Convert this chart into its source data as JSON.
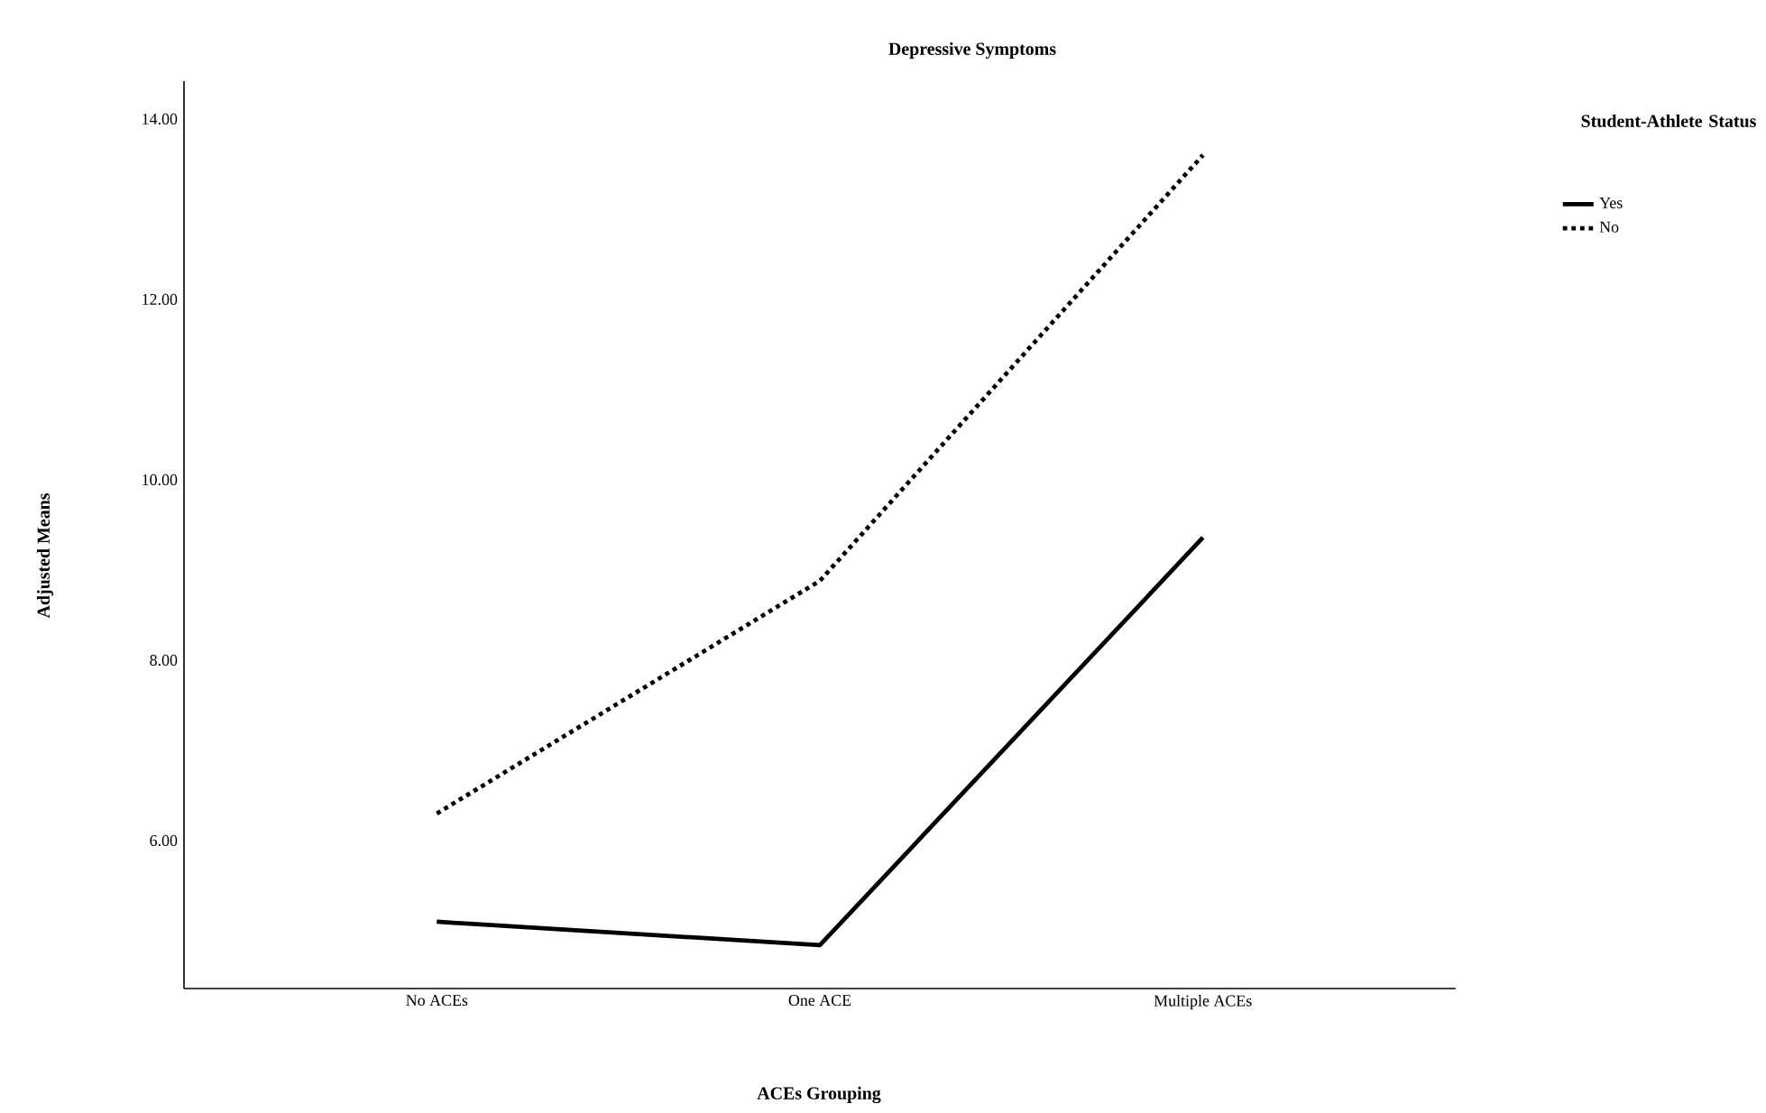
{
  "chart_data": {
    "type": "line",
    "title": "Depressive Symptoms",
    "xlabel": "ACEs Grouping",
    "ylabel": "Adjusted Means",
    "legend_title": "Student-Athlete Status",
    "categories": [
      "No ACEs",
      "One ACE",
      "Multiple ACEs"
    ],
    "series": [
      {
        "name": "Yes",
        "color": "#000000",
        "line_style": "solid",
        "values": [
          5.1,
          4.84,
          9.36
        ]
      },
      {
        "name": "No",
        "color": "#000000",
        "line_style": "dotted",
        "values": [
          6.3,
          8.88,
          13.6
        ]
      }
    ],
    "ylim": [
      4.36,
      14.42
    ],
    "yticks": [
      {
        "value": 6,
        "label": "6.00"
      },
      {
        "value": 8,
        "label": "8.00"
      },
      {
        "value": 10,
        "label": "10.00"
      },
      {
        "value": 12,
        "label": "12.00"
      },
      {
        "value": 14,
        "label": "14.00"
      }
    ],
    "grid": false,
    "legend": "right",
    "marker": "none"
  }
}
